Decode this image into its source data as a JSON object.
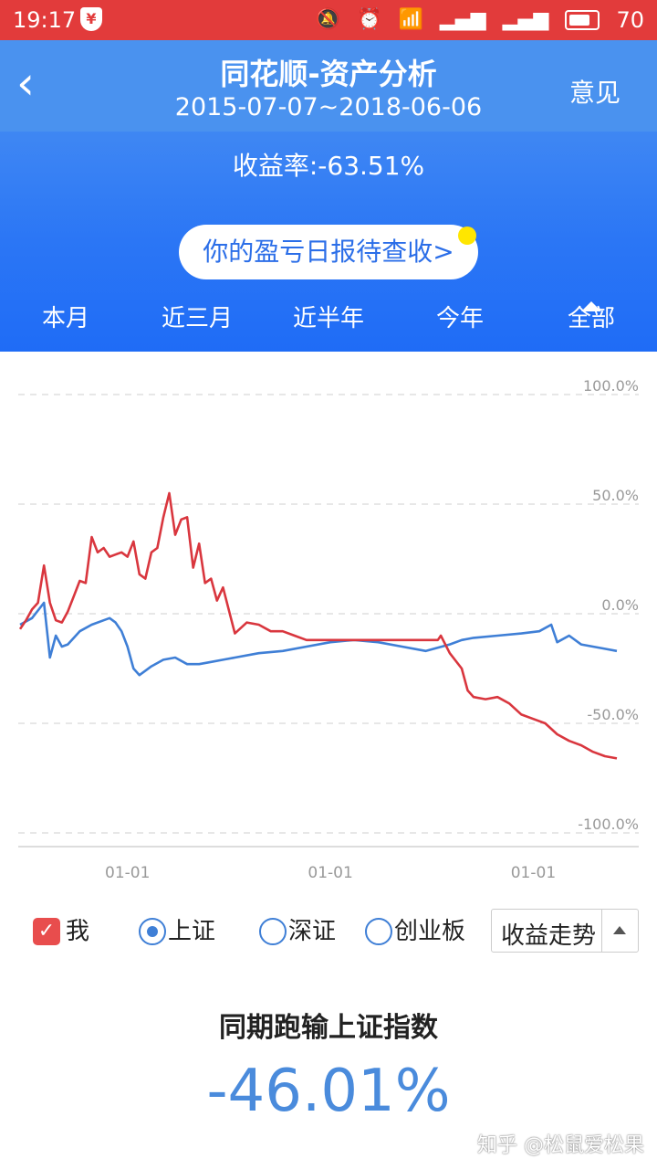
{
  "status_bar": {
    "time": "19:17",
    "battery": "70",
    "icons": [
      "yen-shield-icon",
      "mute-icon",
      "alarm-icon",
      "wifi-icon",
      "signal-4g-icon",
      "signal-icon",
      "battery-icon"
    ]
  },
  "header": {
    "back_icon": "chevron-left-icon",
    "title": "同花顺-资产分析",
    "date_range": "2015-07-07~2018-06-06",
    "feedback": "意见",
    "yield_label": "收益率:-63.51%",
    "pill_text": "你的盈亏日报待查收>",
    "tabs": [
      "本月",
      "近三月",
      "近半年",
      "今年",
      "全部"
    ],
    "active_tab": "全部"
  },
  "colors": {
    "mine": "#d9363e",
    "shanghai": "#3f7fd6",
    "accent": "#2b76f5"
  },
  "chart_data": {
    "type": "line",
    "y_ticks": [
      "100.0%",
      "50.0%",
      "0.0%",
      "-50.0%",
      "-100.0%"
    ],
    "ylim": [
      -100,
      100
    ],
    "x_ticks": [
      "01-01",
      "01-01",
      "01-01"
    ],
    "x_tick_positions": [
      0.18,
      0.52,
      0.86
    ],
    "grid": true,
    "series": [
      {
        "name": "我",
        "color": "#d9363e",
        "x": [
          0,
          0.01,
          0.02,
          0.03,
          0.04,
          0.05,
          0.06,
          0.07,
          0.08,
          0.09,
          0.1,
          0.11,
          0.12,
          0.13,
          0.14,
          0.15,
          0.16,
          0.17,
          0.18,
          0.19,
          0.2,
          0.21,
          0.22,
          0.23,
          0.24,
          0.25,
          0.26,
          0.27,
          0.28,
          0.29,
          0.3,
          0.31,
          0.32,
          0.33,
          0.34,
          0.36,
          0.38,
          0.4,
          0.42,
          0.44,
          0.46,
          0.48,
          0.5,
          0.55,
          0.6,
          0.65,
          0.7,
          0.705,
          0.72,
          0.74,
          0.75,
          0.76,
          0.78,
          0.8,
          0.82,
          0.84,
          0.86,
          0.88,
          0.9,
          0.92,
          0.94,
          0.96,
          0.98,
          1.0
        ],
        "y": [
          -7,
          -3,
          2,
          5,
          22,
          5,
          -3,
          -4,
          1,
          8,
          15,
          14,
          35,
          28,
          30,
          26,
          27,
          28,
          26,
          33,
          18,
          16,
          28,
          30,
          44,
          55,
          36,
          43,
          44,
          21,
          32,
          14,
          16,
          6,
          12,
          -9,
          -4,
          -5,
          -8,
          -8,
          -10,
          -12,
          -12,
          -12,
          -12,
          -12,
          -12,
          -10,
          -18,
          -25,
          -35,
          -38,
          -39,
          -38,
          -41,
          -46,
          -48,
          -50,
          -55,
          -58,
          -60,
          -63,
          -65,
          -66
        ]
      },
      {
        "name": "上证",
        "color": "#3f7fd6",
        "x": [
          0,
          0.02,
          0.04,
          0.05,
          0.06,
          0.07,
          0.08,
          0.1,
          0.12,
          0.14,
          0.15,
          0.16,
          0.17,
          0.18,
          0.19,
          0.2,
          0.21,
          0.22,
          0.24,
          0.26,
          0.28,
          0.3,
          0.32,
          0.34,
          0.36,
          0.4,
          0.44,
          0.48,
          0.52,
          0.56,
          0.6,
          0.64,
          0.68,
          0.72,
          0.74,
          0.76,
          0.8,
          0.84,
          0.87,
          0.89,
          0.9,
          0.92,
          0.94,
          0.96,
          0.98,
          1.0
        ],
        "y": [
          -5,
          -2,
          5,
          -20,
          -10,
          -15,
          -14,
          -8,
          -5,
          -3,
          -2,
          -4,
          -8,
          -15,
          -25,
          -28,
          -26,
          -24,
          -21,
          -20,
          -23,
          -23,
          -22,
          -21,
          -20,
          -18,
          -17,
          -15,
          -13,
          -12,
          -13,
          -15,
          -17,
          -14,
          -12,
          -11,
          -10,
          -9,
          -8,
          -5,
          -13,
          -10,
          -14,
          -15,
          -16,
          -17
        ]
      }
    ]
  },
  "legend": {
    "items": [
      {
        "label": "我",
        "type": "checkbox",
        "checked": true
      },
      {
        "label": "上证",
        "type": "radio",
        "checked": true
      },
      {
        "label": "深证",
        "type": "radio",
        "checked": false
      },
      {
        "label": "创业板",
        "type": "radio",
        "checked": false
      }
    ],
    "dropdown_value": "收益走势"
  },
  "comparison": {
    "title": "同期跑输上证指数",
    "value": "-46.01%"
  },
  "watermark": "知乎 @松鼠爱松果"
}
